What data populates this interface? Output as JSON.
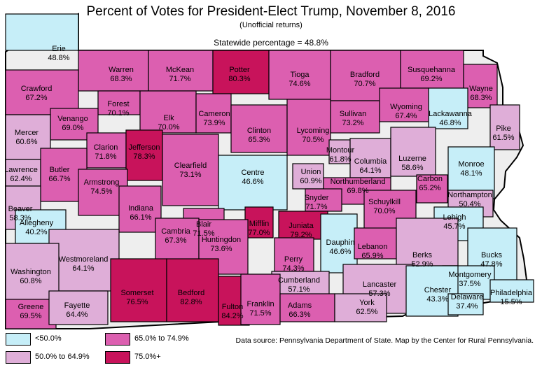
{
  "title": "Percent of Votes for President-Elect Trump, November 8, 2016",
  "subtitle": "(Unofficial returns)",
  "statewide": "Statewide percentage = 48.8%",
  "source": "Data source: Pennsylvania Department of State. Map by the Center for Rural Pennsylvania.",
  "colors": {
    "lt50": "#c6eef8",
    "r50_65": "#dfaed8",
    "r65_75": "#dc5fb0",
    "r75p": "#c8135b"
  },
  "legend": [
    {
      "label": "<50.0%",
      "class": "lt50"
    },
    {
      "label": "50.0% to 64.9%",
      "class": "r50_65"
    },
    {
      "label": "65.0% to 74.9%",
      "class": "r65_75"
    },
    {
      "label": "75.0%+",
      "class": "r75p"
    }
  ],
  "counties": [
    {
      "name": "Erie",
      "value": "48.8%",
      "class": "lt50"
    },
    {
      "name": "Warren",
      "value": "68.3%",
      "class": "r65_75"
    },
    {
      "name": "McKean",
      "value": "71.7%",
      "class": "r65_75"
    },
    {
      "name": "Potter",
      "value": "80.3%",
      "class": "r75p"
    },
    {
      "name": "Tioga",
      "value": "74.6%",
      "class": "r65_75"
    },
    {
      "name": "Bradford",
      "value": "70.7%",
      "class": "r65_75"
    },
    {
      "name": "Susquehanna",
      "value": "69.2%",
      "class": "r65_75"
    },
    {
      "name": "Wayne",
      "value": "68.3%",
      "class": "r65_75"
    },
    {
      "name": "Crawford",
      "value": "67.2%",
      "class": "r65_75"
    },
    {
      "name": "Forest",
      "value": "70.1%",
      "class": "r65_75"
    },
    {
      "name": "Venango",
      "value": "69.0%",
      "class": "r65_75"
    },
    {
      "name": "Elk",
      "value": "70.0%",
      "class": "r65_75"
    },
    {
      "name": "Cameron",
      "value": "73.9%",
      "class": "r65_75"
    },
    {
      "name": "Sullivan",
      "value": "73.2%",
      "class": "r65_75"
    },
    {
      "name": "Wyoming",
      "value": "67.4%",
      "class": "r65_75"
    },
    {
      "name": "Lackawanna",
      "value": "46.8%",
      "class": "lt50"
    },
    {
      "name": "Mercer",
      "value": "60.6%",
      "class": "r50_65"
    },
    {
      "name": "Clarion",
      "value": "71.8%",
      "class": "r65_75"
    },
    {
      "name": "Jefferson",
      "value": "78.3%",
      "class": "r75p"
    },
    {
      "name": "Clinton",
      "value": "65.3%",
      "class": "r65_75"
    },
    {
      "name": "Lycoming",
      "value": "70.5%",
      "class": "r65_75"
    },
    {
      "name": "Pike",
      "value": "61.5%",
      "class": "r50_65"
    },
    {
      "name": "Montour",
      "value": "61.8%",
      "class": "r50_65"
    },
    {
      "name": "Columbia",
      "value": "64.1%",
      "class": "r50_65"
    },
    {
      "name": "Luzerne",
      "value": "58.6%",
      "class": "r50_65"
    },
    {
      "name": "Lawrence",
      "value": "62.4%",
      "class": "r50_65"
    },
    {
      "name": "Butler",
      "value": "66.7%",
      "class": "r65_75"
    },
    {
      "name": "Clearfield",
      "value": "73.1%",
      "class": "r65_75"
    },
    {
      "name": "Centre",
      "value": "46.6%",
      "class": "lt50"
    },
    {
      "name": "Union",
      "value": "60.9%",
      "class": "r50_65"
    },
    {
      "name": "Northumberland",
      "value": "69.8%",
      "class": "r65_75"
    },
    {
      "name": "Carbon",
      "value": "65.2%",
      "class": "r65_75"
    },
    {
      "name": "Monroe",
      "value": "48.1%",
      "class": "lt50"
    },
    {
      "name": "Armstrong",
      "value": "74.5%",
      "class": "r65_75"
    },
    {
      "name": "Snyder",
      "value": "71.7%",
      "class": "r65_75"
    },
    {
      "name": "Beaver",
      "value": "58.3%",
      "class": "r50_65"
    },
    {
      "name": "Indiana",
      "value": "66.1%",
      "class": "r65_75"
    },
    {
      "name": "Schuylkill",
      "value": "70.0%",
      "class": "r65_75"
    },
    {
      "name": "Northampton",
      "value": "50.4%",
      "class": "r50_65"
    },
    {
      "name": "Allegheny",
      "value": "40.2%",
      "class": "lt50"
    },
    {
      "name": "Blair",
      "value": "71.5%",
      "class": "r65_75"
    },
    {
      "name": "Mifflin",
      "value": "77.0%",
      "class": "r75p"
    },
    {
      "name": "Juniata",
      "value": "79.2%",
      "class": "r75p"
    },
    {
      "name": "Lehigh",
      "value": "45.7%",
      "class": "lt50"
    },
    {
      "name": "Cambria",
      "value": "67.3%",
      "class": "r65_75"
    },
    {
      "name": "Huntingdon",
      "value": "73.6%",
      "class": "r65_75"
    },
    {
      "name": "Perry",
      "value": "74.3%",
      "class": "r65_75"
    },
    {
      "name": "Dauphin",
      "value": "46.6%",
      "class": "lt50"
    },
    {
      "name": "Lebanon",
      "value": "65.9%",
      "class": "r65_75"
    },
    {
      "name": "Berks",
      "value": "52.9%",
      "class": "r50_65"
    },
    {
      "name": "Westmoreland",
      "value": "64.1%",
      "class": "r50_65"
    },
    {
      "name": "Bucks",
      "value": "47.8%",
      "class": "lt50"
    },
    {
      "name": "Washington",
      "value": "60.8%",
      "class": "r50_65"
    },
    {
      "name": "Cumberland",
      "value": "57.1%",
      "class": "r50_65"
    },
    {
      "name": "Lancaster",
      "value": "57.3%",
      "class": "r50_65"
    },
    {
      "name": "Montgomery",
      "value": "37.5%",
      "class": "lt50"
    },
    {
      "name": "Somerset",
      "value": "76.5%",
      "class": "r75p"
    },
    {
      "name": "Bedford",
      "value": "82.8%",
      "class": "r75p"
    },
    {
      "name": "Fulton",
      "value": "84.2%",
      "class": "r75p"
    },
    {
      "name": "Franklin",
      "value": "71.5%",
      "class": "r65_75"
    },
    {
      "name": "Adams",
      "value": "66.3%",
      "class": "r65_75"
    },
    {
      "name": "York",
      "value": "62.5%",
      "class": "r50_65"
    },
    {
      "name": "Chester",
      "value": "43.3%",
      "class": "lt50"
    },
    {
      "name": "Philadelphia",
      "value": "15.5%",
      "class": "lt50"
    },
    {
      "name": "Delaware",
      "value": "37.4%",
      "class": "lt50"
    },
    {
      "name": "Greene",
      "value": "69.5%",
      "class": "r65_75"
    },
    {
      "name": "Fayette",
      "value": "64.4%",
      "class": "r50_65"
    }
  ]
}
